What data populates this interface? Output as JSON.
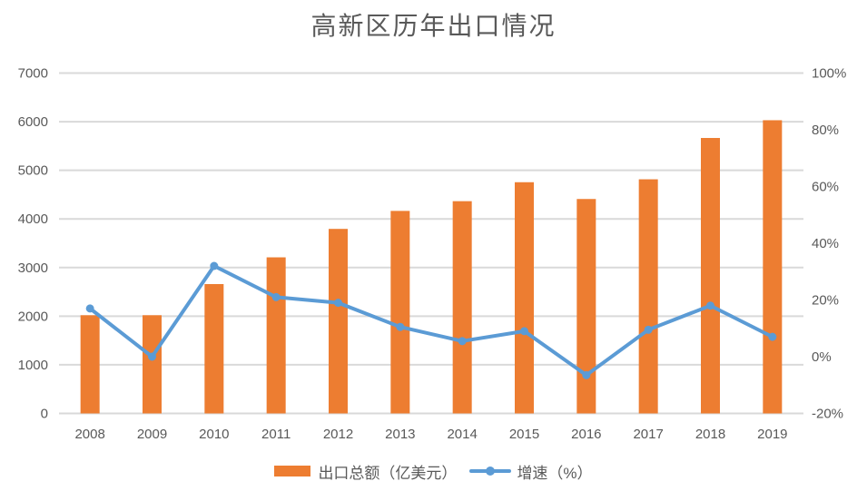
{
  "chart_data": {
    "type": "bar",
    "subtype": "bar-line-combo",
    "title": "高新区历年出口情况",
    "categories": [
      "2008",
      "2009",
      "2010",
      "2011",
      "2012",
      "2013",
      "2014",
      "2015",
      "2016",
      "2017",
      "2018",
      "2019"
    ],
    "series": [
      {
        "name": "出口总额（亿美元）",
        "type": "bar",
        "axis": "left",
        "color": "#ED7D31",
        "values": [
          2020,
          2020,
          2660,
          3210,
          3795,
          4165,
          4365,
          4755,
          4410,
          4815,
          5665,
          6030
        ]
      },
      {
        "name": "增速（%）",
        "type": "line",
        "axis": "right",
        "color": "#5B9BD5",
        "values": [
          17,
          0,
          32,
          21,
          19,
          10.5,
          5.5,
          9,
          -6.5,
          9.5,
          18,
          7
        ]
      }
    ],
    "left_axis": {
      "min": 0,
      "max": 7000,
      "step": 1000,
      "tick_labels": [
        "7000",
        "6000",
        "5000",
        "4000",
        "3000",
        "2000",
        "1000",
        "0"
      ]
    },
    "right_axis": {
      "min": -20,
      "max": 100,
      "step": 20,
      "tick_labels": [
        "100%",
        "80%",
        "60%",
        "40%",
        "20%",
        "0%",
        "-20%"
      ]
    },
    "grid": true,
    "legend_position": "bottom"
  },
  "colors": {
    "bar": "#ED7D31",
    "line": "#5B9BD5",
    "gridline": "#D9D9D9",
    "axis_text": "#595959",
    "title_text": "#595959"
  }
}
